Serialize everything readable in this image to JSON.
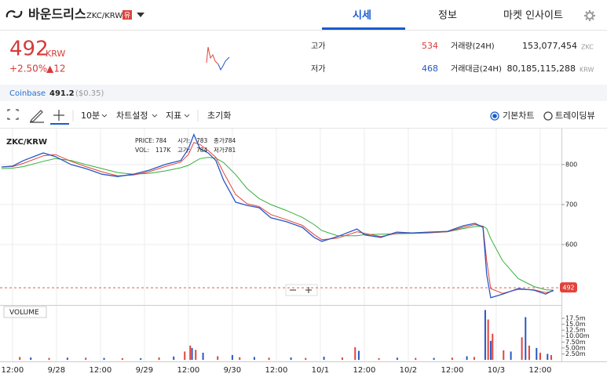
{
  "header": {
    "name": "바운드리스",
    "pair": "ZKC/KRW",
    "badge": "유",
    "tabs": [
      "시세",
      "정보",
      "마켓 인사이트"
    ]
  },
  "ticker": {
    "price": 492,
    "unit": "KRW",
    "change_percent": "+2.50%",
    "change_amount": "▲12",
    "high_label": "고가",
    "high": 534,
    "low_label": "저가",
    "low": 468,
    "volume_label": "거래량(24H)",
    "volume": "153,077,454",
    "volume_unit": "ZKC",
    "value_label": "거래대금(24H)",
    "value": "80,185,115,288",
    "value_unit": "KRW"
  },
  "exchange": {
    "name": "Coinbase",
    "price": 491.2,
    "usd": "($0.35)"
  },
  "toolbar": {
    "interval": "10분",
    "settings": "차트설정",
    "indicators": "지표",
    "reset": "초기화",
    "chart_modes": [
      "기본차트",
      "트레이딩뷰"
    ]
  },
  "chart_data": {
    "type": "line",
    "title": "ZKC/KRW",
    "info": [
      {
        "label": "PRICE:",
        "value": "784"
      },
      {
        "label": "시가:",
        "value": "783"
      },
      {
        "label": "종가:",
        "value": "784"
      },
      {
        "label": "VOL:",
        "value": "117K"
      },
      {
        "label": "고가:",
        "value": "784"
      },
      {
        "label": "저가:",
        "value": "781"
      }
    ],
    "x": [
      -3,
      0,
      3,
      8.4,
      11.7,
      16,
      20,
      24.4,
      28.7,
      33,
      37.3,
      41.6,
      45.9,
      48,
      49.5,
      51.2,
      53.4,
      55.5,
      57.6,
      60.9,
      64,
      67.3,
      70.5,
      74.8,
      79.1,
      82.3,
      84.4,
      88.7,
      94,
      96.2,
      100.5,
      104.8,
      109,
      113.4,
      118.7,
      123,
      126.2,
      128.4,
      129.4,
      130.5,
      133.7,
      138,
      142.3,
      145.5,
      147.6
    ],
    "series": [
      {
        "color": "#34b03a",
        "values": [
          790,
          791,
          795,
          808,
          815,
          810,
          800,
          790,
          780,
          776,
          778,
          784,
          792,
          798,
          806,
          815,
          818,
          816,
          805,
          775,
          740,
          715,
          700,
          685,
          668,
          650,
          635,
          622,
          622,
          625,
          626,
          627,
          628,
          629,
          632,
          640,
          645,
          646,
          640,
          615,
          560,
          515,
          495,
          487,
          486
        ]
      },
      {
        "color": "#e0443c",
        "values": [
          794,
          795,
          803,
          822,
          825,
          808,
          795,
          782,
          772,
          774,
          782,
          795,
          806,
          825,
          855,
          850,
          835,
          818,
          780,
          725,
          702,
          695,
          675,
          662,
          648,
          625,
          612,
          616,
          632,
          628,
          620,
          628,
          629,
          630,
          632,
          643,
          650,
          646,
          560,
          490,
          478,
          488,
          487,
          480,
          484
        ]
      },
      {
        "color": "#2a56c6",
        "values": [
          794,
          796,
          810,
          829,
          820,
          800,
          790,
          776,
          770,
          776,
          786,
          800,
          810,
          839,
          875,
          839,
          829,
          810,
          761,
          706,
          698,
          692,
          667,
          657,
          643,
          618,
          608,
          620,
          639,
          624,
          618,
          631,
          629,
          631,
          633,
          647,
          653,
          643,
          525,
          467,
          476,
          490,
          486,
          476,
          486
        ]
      }
    ],
    "xlim": [
      -3.4,
      149.8
    ],
    "ylim": [
      451,
      888
    ],
    "yticks": [
      600,
      700,
      800
    ],
    "xticks": [
      {
        "value": 0,
        "label": "12:00"
      },
      {
        "value": 12,
        "label": "9/28"
      },
      {
        "value": 24,
        "label": "12:00"
      },
      {
        "value": 36,
        "label": "9/29"
      },
      {
        "value": 48,
        "label": "12:00"
      },
      {
        "value": 60,
        "label": "9/30"
      },
      {
        "value": 72,
        "label": "12:00"
      },
      {
        "value": 84,
        "label": "10/1"
      },
      {
        "value": 96,
        "label": "12:00"
      },
      {
        "value": 108,
        "label": "10/2"
      },
      {
        "value": 120,
        "label": "12:00"
      },
      {
        "value": 132,
        "label": "10/3"
      },
      {
        "value": 144,
        "label": "12:00"
      }
    ],
    "grid": true,
    "volume": {
      "title": "VOLUME",
      "ylim": [
        0,
        22.8
      ],
      "yticks": [
        {
          "value": 17.5,
          "label": "17.5m"
        },
        {
          "value": 15,
          "label": "15.0m"
        },
        {
          "value": 12.5,
          "label": "12.5m"
        },
        {
          "value": 10,
          "label": "10.00m"
        },
        {
          "value": 7.5,
          "label": "7.50m"
        },
        {
          "value": 5,
          "label": "5.00m"
        },
        {
          "value": 2.5,
          "label": "2.50m"
        }
      ],
      "series": [
        {
          "color": "#e0443c",
          "x": [
            2,
            10,
            20,
            30,
            40,
            47,
            48.5,
            50,
            56,
            62,
            70,
            80,
            90,
            93.5,
            100,
            110,
            120,
            126,
            129.8,
            131,
            134,
            139,
            141,
            144,
            147
          ],
          "values": [
            1.2,
            0.8,
            0.9,
            0.7,
            1.0,
            3.5,
            6.0,
            4.2,
            1.5,
            1.1,
            0.9,
            0.8,
            1.0,
            5.3,
            0.7,
            0.8,
            0.9,
            1.2,
            17.0,
            11.0,
            4.0,
            9.5,
            6.0,
            3.0,
            2.0
          ]
        },
        {
          "color": "#2a56c6",
          "x": [
            5,
            15,
            25,
            35,
            44,
            49,
            52,
            60,
            66,
            76,
            85,
            94.5,
            105,
            115,
            124,
            129,
            130.5,
            136,
            140,
            143,
            146
          ],
          "values": [
            1.0,
            0.9,
            0.8,
            0.7,
            1.4,
            5.0,
            3.0,
            2.0,
            1.2,
            1.0,
            1.3,
            3.8,
            0.9,
            0.8,
            1.5,
            21.0,
            8.0,
            3.5,
            18.0,
            5.0,
            2.5
          ]
        }
      ]
    }
  }
}
